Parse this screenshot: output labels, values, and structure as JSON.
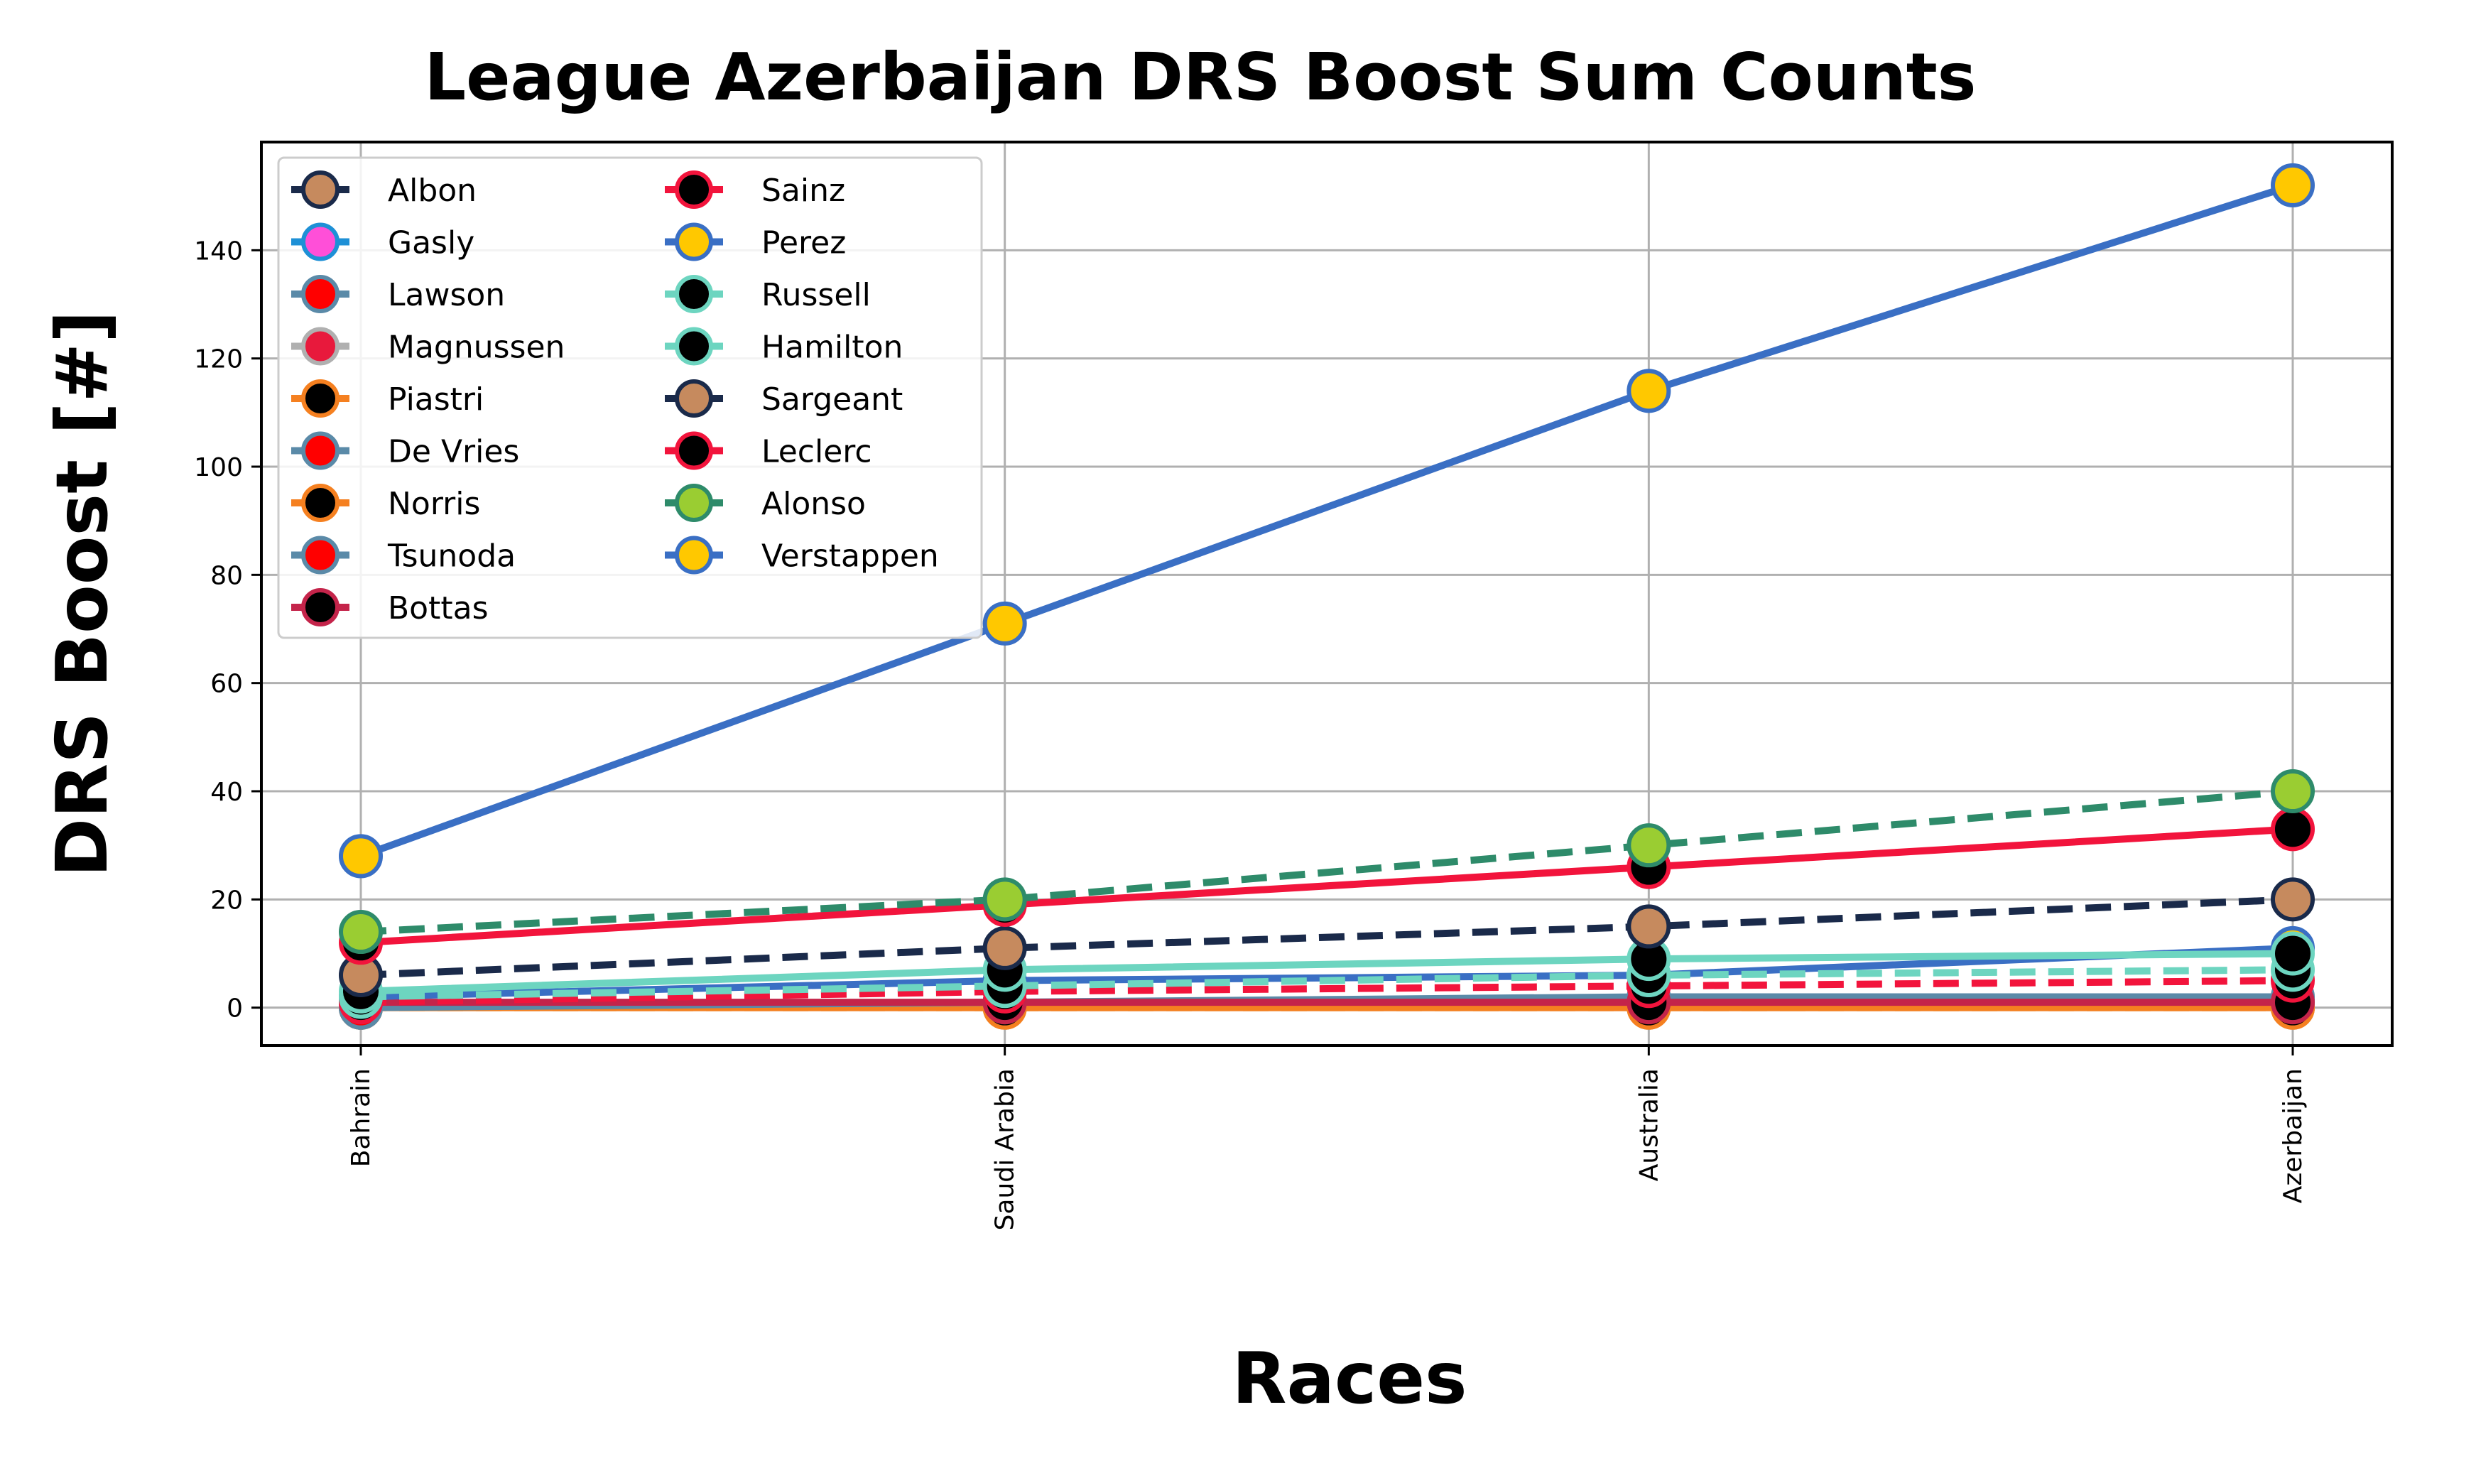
{
  "chart_data": {
    "type": "line",
    "title": "League Azerbaijan DRS Boost Sum Counts",
    "xlabel": "Races",
    "ylabel": "DRS Boost [#]",
    "categories": [
      "Bahrain",
      "Saudi Arabia",
      "Australia",
      "Azerbaijan"
    ],
    "ylim": [
      -7,
      160
    ],
    "yticks": [
      0,
      20,
      40,
      60,
      80,
      100,
      120,
      140
    ],
    "grid": true,
    "legend": "top-left",
    "series": [
      {
        "name": "Albon",
        "values": [
          0,
          1,
          1,
          1
        ],
        "color": "#1a2a4a",
        "marker_fill": "#c68a5e",
        "dash": true
      },
      {
        "name": "Gasly",
        "values": [
          0,
          1,
          1,
          1
        ],
        "color": "#1e90d6",
        "marker_fill": "#ff4fd8",
        "dash": true
      },
      {
        "name": "Lawson",
        "values": [
          0,
          1,
          1,
          1
        ],
        "color": "#5a8aa8",
        "marker_fill": "#ff0000",
        "dash": true
      },
      {
        "name": "Magnussen",
        "values": [
          0,
          0,
          0,
          0
        ],
        "color": "#b0b0b0",
        "marker_fill": "#e8193c",
        "dash": false
      },
      {
        "name": "Piastri",
        "values": [
          0,
          0,
          0,
          0
        ],
        "color": "#f58020",
        "marker_fill": "#000000",
        "dash": true
      },
      {
        "name": "De Vries",
        "values": [
          0,
          1,
          1,
          1
        ],
        "color": "#5a8aa8",
        "marker_fill": "#ff0000",
        "dash": false
      },
      {
        "name": "Norris",
        "values": [
          0,
          0,
          0,
          0
        ],
        "color": "#f58020",
        "marker_fill": "#000000",
        "dash": false
      },
      {
        "name": "Tsunoda",
        "values": [
          0,
          1,
          2,
          2
        ],
        "color": "#5a8aa8",
        "marker_fill": "#ff0000",
        "dash": false
      },
      {
        "name": "Bottas",
        "values": [
          1,
          1,
          1,
          1
        ],
        "color": "#c4244a",
        "marker_fill": "#000000",
        "dash": false
      },
      {
        "name": "Sainz",
        "values": [
          1,
          3,
          4,
          5
        ],
        "color": "#f2143c",
        "marker_fill": "#000000",
        "dash": true
      },
      {
        "name": "Perez",
        "values": [
          2,
          5,
          6,
          11
        ],
        "color": "#3a6fc4",
        "marker_fill": "#ffc800",
        "dash": false
      },
      {
        "name": "Russell",
        "values": [
          2,
          4,
          6,
          7
        ],
        "color": "#6dd5c0",
        "marker_fill": "#000000",
        "dash": true
      },
      {
        "name": "Hamilton",
        "values": [
          3,
          7,
          9,
          10
        ],
        "color": "#6dd5c0",
        "marker_fill": "#000000",
        "dash": false
      },
      {
        "name": "Sargeant",
        "values": [
          6,
          11,
          15,
          20
        ],
        "color": "#1a2a4a",
        "marker_fill": "#c68a5e",
        "dash": true
      },
      {
        "name": "Leclerc",
        "values": [
          12,
          19,
          26,
          33
        ],
        "color": "#f2143c",
        "marker_fill": "#000000",
        "dash": false
      },
      {
        "name": "Alonso",
        "values": [
          14,
          20,
          30,
          40
        ],
        "color": "#2e8b6a",
        "marker_fill": "#9acd32",
        "dash": true
      },
      {
        "name": "Verstappen",
        "values": [
          28,
          71,
          114,
          152
        ],
        "color": "#3a6fc4",
        "marker_fill": "#ffc800",
        "dash": false
      }
    ]
  }
}
